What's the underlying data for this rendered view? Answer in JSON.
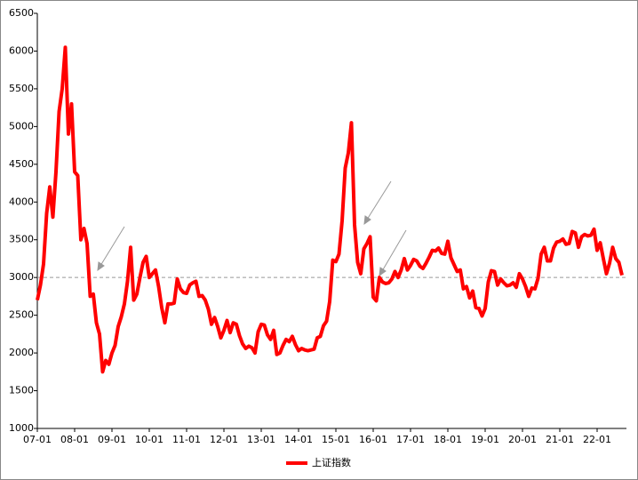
{
  "chart_data": {
    "type": "line",
    "x": [
      "07-01",
      "07-02",
      "07-03",
      "07-04",
      "07-05",
      "07-06",
      "07-07",
      "07-08",
      "07-09",
      "07-10",
      "07-11",
      "07-12",
      "08-01",
      "08-02",
      "08-03",
      "08-04",
      "08-05",
      "08-06",
      "08-07",
      "08-08",
      "08-09",
      "08-10",
      "08-11",
      "08-12",
      "09-01",
      "09-02",
      "09-03",
      "09-04",
      "09-05",
      "09-06",
      "09-07",
      "09-08",
      "09-09",
      "09-10",
      "09-11",
      "09-12",
      "10-01",
      "10-02",
      "10-03",
      "10-04",
      "10-05",
      "10-06",
      "10-07",
      "10-08",
      "10-09",
      "10-10",
      "10-11",
      "10-12",
      "11-01",
      "11-02",
      "11-03",
      "11-04",
      "11-05",
      "11-06",
      "11-07",
      "11-08",
      "11-09",
      "11-10",
      "11-11",
      "11-12",
      "12-01",
      "12-02",
      "12-03",
      "12-04",
      "12-05",
      "12-06",
      "12-07",
      "12-08",
      "12-09",
      "12-10",
      "12-11",
      "12-12",
      "13-01",
      "13-02",
      "13-03",
      "13-04",
      "13-05",
      "13-06",
      "13-07",
      "13-08",
      "13-09",
      "13-10",
      "13-11",
      "13-12",
      "14-01",
      "14-02",
      "14-03",
      "14-04",
      "14-05",
      "14-06",
      "14-07",
      "14-08",
      "14-09",
      "14-10",
      "14-11",
      "14-12",
      "15-01",
      "15-02",
      "15-03",
      "15-04",
      "15-05",
      "15-06",
      "15-07",
      "15-08",
      "15-09",
      "15-10",
      "15-11",
      "15-12",
      "16-01",
      "16-02",
      "16-03",
      "16-04",
      "16-05",
      "16-06",
      "16-07",
      "16-08",
      "16-09",
      "16-10",
      "16-11",
      "16-12",
      "17-01",
      "17-02",
      "17-03",
      "17-04",
      "17-05",
      "17-06",
      "17-07",
      "17-08",
      "17-09",
      "17-10",
      "17-11",
      "17-12",
      "18-01",
      "18-02",
      "18-03",
      "18-04",
      "18-05",
      "18-06",
      "18-07",
      "18-08",
      "18-09",
      "18-10",
      "18-11",
      "18-12",
      "19-01",
      "19-02",
      "19-03",
      "19-04",
      "19-05",
      "19-06",
      "19-07",
      "19-08",
      "19-09",
      "19-10",
      "19-11",
      "19-12",
      "20-01",
      "20-02",
      "20-03",
      "20-04",
      "20-05",
      "20-06",
      "20-07",
      "20-08",
      "20-09",
      "20-10",
      "20-11",
      "20-12",
      "21-01",
      "21-02",
      "21-03",
      "21-04",
      "21-05",
      "21-06",
      "21-07",
      "21-08",
      "21-09",
      "21-10",
      "21-11",
      "21-12",
      "22-01",
      "22-02",
      "22-03",
      "22-04",
      "22-05",
      "22-06",
      "22-07",
      "22-08",
      "22-09"
    ],
    "series": [
      {
        "name": "上证指数",
        "color": "#ff0000",
        "values": [
          2700,
          2900,
          3180,
          3850,
          4200,
          3800,
          4400,
          5200,
          5500,
          6050,
          4900,
          5300,
          4400,
          4350,
          3500,
          3650,
          3450,
          2750,
          2780,
          2400,
          2250,
          1750,
          1900,
          1850,
          2000,
          2100,
          2350,
          2480,
          2650,
          2950,
          3400,
          2700,
          2780,
          3000,
          3200,
          3280,
          3000,
          3050,
          3100,
          2880,
          2600,
          2400,
          2650,
          2650,
          2660,
          2980,
          2850,
          2800,
          2790,
          2900,
          2930,
          2950,
          2750,
          2760,
          2700,
          2580,
          2380,
          2470,
          2350,
          2200,
          2300,
          2430,
          2270,
          2400,
          2380,
          2230,
          2120,
          2060,
          2090,
          2070,
          2000,
          2280,
          2380,
          2370,
          2240,
          2180,
          2300,
          1980,
          2000,
          2100,
          2180,
          2150,
          2220,
          2110,
          2030,
          2060,
          2040,
          2030,
          2040,
          2050,
          2200,
          2220,
          2360,
          2420,
          2680,
          3230,
          3210,
          3310,
          3750,
          4450,
          4650,
          5050,
          3700,
          3200,
          3050,
          3380,
          3450,
          3540,
          2740,
          2690,
          3000,
          2940,
          2920,
          2930,
          2980,
          3080,
          3000,
          3100,
          3250,
          3100,
          3160,
          3240,
          3220,
          3150,
          3120,
          3190,
          3270,
          3360,
          3350,
          3390,
          3320,
          3310,
          3480,
          3260,
          3170,
          3080,
          3100,
          2850,
          2880,
          2730,
          2820,
          2600,
          2590,
          2490,
          2590,
          2940,
          3090,
          3080,
          2900,
          2980,
          2930,
          2890,
          2900,
          2930,
          2870,
          3050,
          2980,
          2880,
          2750,
          2860,
          2850,
          2990,
          3310,
          3400,
          3220,
          3220,
          3390,
          3470,
          3480,
          3510,
          3440,
          3450,
          3610,
          3590,
          3400,
          3540,
          3570,
          3550,
          3560,
          3640,
          3360,
          3460,
          3250,
          3050,
          3190,
          3400,
          3250,
          3200,
          3030
        ]
      }
    ],
    "ylim": [
      1000,
      6500
    ],
    "yticks": [
      1000,
      1500,
      2000,
      2500,
      3000,
      3500,
      4000,
      4500,
      5000,
      5500,
      6000,
      6500
    ],
    "reference_line": 3000,
    "legend": "bottom"
  }
}
